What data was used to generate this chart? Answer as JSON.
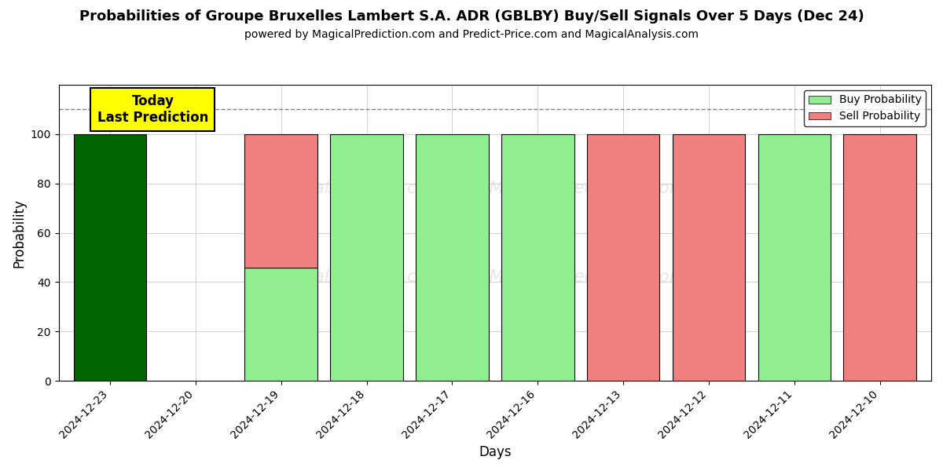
{
  "title": "Probabilities of Groupe Bruxelles Lambert S.A. ADR (GBLBY) Buy/Sell Signals Over 5 Days (Dec 24)",
  "subtitle": "powered by MagicalPrediction.com and Predict-Price.com and MagicalAnalysis.com",
  "xlabel": "Days",
  "ylabel": "Probability",
  "days": [
    "2024-12-23",
    "2024-12-20",
    "2024-12-19",
    "2024-12-18",
    "2024-12-17",
    "2024-12-16",
    "2024-12-13",
    "2024-12-12",
    "2024-12-11",
    "2024-12-10"
  ],
  "buy_probs": [
    100,
    0,
    46,
    100,
    100,
    100,
    0,
    0,
    100,
    0
  ],
  "sell_probs": [
    0,
    0,
    54,
    0,
    0,
    0,
    100,
    100,
    0,
    100
  ],
  "buy_color_dark": "#006400",
  "buy_color_light": "#90EE90",
  "sell_color": "#F08080",
  "today_box_color": "#FFFF00",
  "today_box_text": "Today\nLast Prediction",
  "ylim": [
    0,
    120
  ],
  "yticks": [
    0,
    20,
    40,
    60,
    80,
    100
  ],
  "dashed_line_y": 110,
  "bar_width": 0.85,
  "figsize": [
    12,
    6
  ],
  "dpi": 100,
  "watermark_line1": "calAnalysis.com   MagicalPrediction.com",
  "watermark_line2": "calA   nalysis.com   MagicalPrediction.com"
}
